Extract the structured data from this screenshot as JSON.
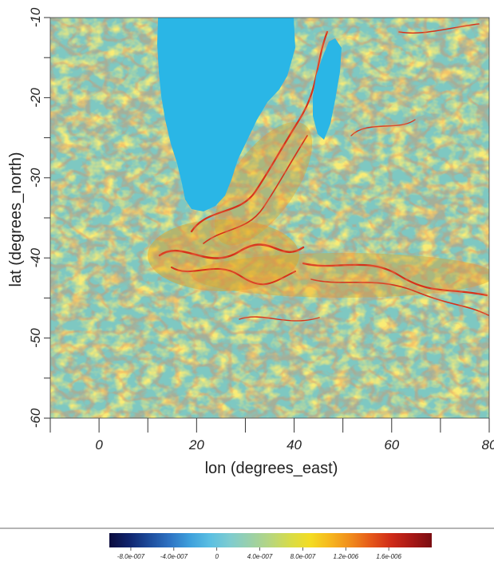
{
  "chart_data": {
    "type": "heatmap",
    "title": "",
    "xlabel": "lon (degrees_east)",
    "ylabel": "lat (degrees_north)",
    "xlim": [
      -10,
      80
    ],
    "ylim": [
      -60,
      -10
    ],
    "xticks": [
      -10,
      0,
      10,
      20,
      30,
      40,
      50,
      60,
      70,
      80
    ],
    "xtick_labels": [
      {
        "value": 0,
        "label": "0"
      },
      {
        "value": 20,
        "label": "20"
      },
      {
        "value": 40,
        "label": "40"
      },
      {
        "value": 60,
        "label": "60"
      },
      {
        "value": 80,
        "label": "80"
      }
    ],
    "yticks": [
      -60,
      -55,
      -50,
      -45,
      -40,
      -35,
      -30,
      -25,
      -20,
      -15,
      -10
    ],
    "ytick_labels": [
      {
        "value": -10,
        "label": "-10"
      },
      {
        "value": -20,
        "label": "-20"
      },
      {
        "value": -30,
        "label": "-30"
      },
      {
        "value": -40,
        "label": "-40"
      },
      {
        "value": -50,
        "label": "-50"
      },
      {
        "value": -60,
        "label": "-60"
      }
    ],
    "land_color": "#2ab6e6",
    "colorbar": {
      "range": [
        -1e-06,
        2e-06
      ],
      "tick_labels": [
        {
          "value": -8e-07,
          "label": "-8.0e-007"
        },
        {
          "value": -4e-07,
          "label": "-4.0e-007"
        },
        {
          "value": 0,
          "label": "0"
        },
        {
          "value": 4e-07,
          "label": "4.0e-007"
        },
        {
          "value": 8e-07,
          "label": "8.0e-007"
        },
        {
          "value": 1.2e-06,
          "label": "1.2e-006"
        },
        {
          "value": 1.6e-06,
          "label": "1.6e-006"
        }
      ],
      "colors": [
        "#0b0c3d",
        "#10256e",
        "#1d4c9c",
        "#2e73c3",
        "#3ea0dc",
        "#5bbfe2",
        "#7fcccf",
        "#9ad0a9",
        "#b7d67e",
        "#d8dc47",
        "#f4dc22",
        "#f6b51e",
        "#f08a1c",
        "#e5571a",
        "#cf2b18",
        "#a81816",
        "#7a0e12"
      ]
    },
    "field_description": {
      "background_value_color": "#7ec8c2",
      "high_value_color": "#e23a17",
      "features": [
        {
          "name": "land-africa",
          "type": "land"
        },
        {
          "name": "land-madagascar",
          "type": "land"
        }
      ]
    }
  }
}
